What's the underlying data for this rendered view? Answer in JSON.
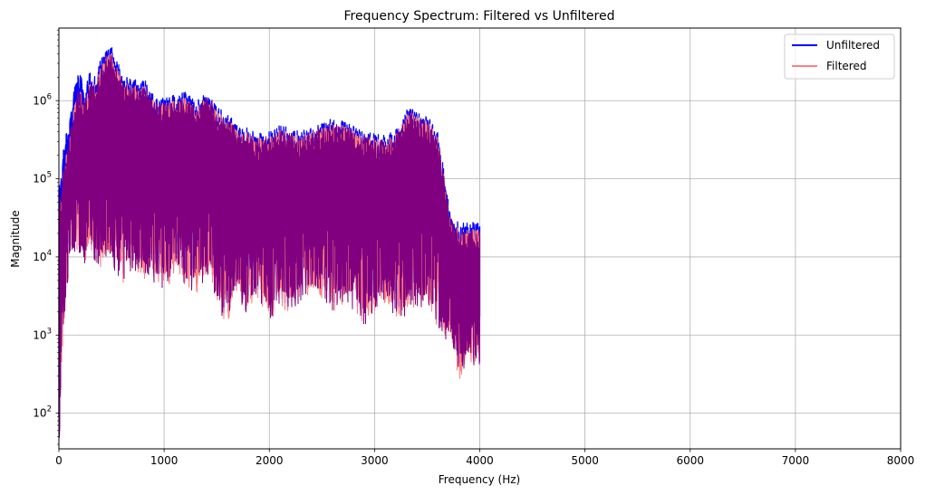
{
  "chart_data": {
    "type": "line",
    "title": "Frequency Spectrum: Filtered vs Unfiltered",
    "xlabel": "Frequency (Hz)",
    "ylabel": "Magnitude",
    "xlim": [
      0,
      8000
    ],
    "ylim": [
      35,
      8500000
    ],
    "yscale": "log",
    "x_ticks": [
      0,
      1000,
      2000,
      3000,
      4000,
      5000,
      6000,
      7000,
      8000
    ],
    "x_tick_labels": [
      "0",
      "1000",
      "2000",
      "3000",
      "4000",
      "5000",
      "6000",
      "7000",
      "8000"
    ],
    "y_ticks": [
      100,
      1000,
      10000,
      100000,
      1000000
    ],
    "y_tick_labels": [
      {
        "base": "10",
        "exp": "2"
      },
      {
        "base": "10",
        "exp": "3"
      },
      {
        "base": "10",
        "exp": "4"
      },
      {
        "base": "10",
        "exp": "5"
      },
      {
        "base": "10",
        "exp": "6"
      }
    ],
    "grid": true,
    "legend_position": "top-right",
    "series": [
      {
        "name": "Unfiltered",
        "color": "#0000ff",
        "x": [
          0,
          50,
          100,
          180,
          250,
          300,
          350,
          400,
          450,
          500,
          540,
          600,
          700,
          800,
          900,
          1000,
          1100,
          1200,
          1300,
          1400,
          1450,
          1500,
          1600,
          1700,
          1800,
          1900,
          2000,
          2100,
          2200,
          2300,
          2400,
          2500,
          2600,
          2700,
          2800,
          2900,
          3000,
          3100,
          3200,
          3300,
          3350,
          3400,
          3500,
          3600,
          3700,
          3750,
          3800,
          3900,
          4000
        ],
        "upper": [
          80000,
          300000,
          600000,
          2700000,
          1500000,
          2500000,
          2000000,
          3500000,
          4500000,
          5000000,
          3800000,
          2200000,
          1800000,
          2000000,
          1200000,
          1100000,
          1200000,
          1300000,
          1000000,
          1400000,
          1300000,
          900000,
          700000,
          500000,
          450000,
          380000,
          420000,
          480000,
          450000,
          400000,
          480000,
          520000,
          600000,
          560000,
          480000,
          420000,
          380000,
          360000,
          420000,
          750000,
          850000,
          700000,
          650000,
          400000,
          60000,
          30000,
          28000,
          27000,
          30000
        ],
        "lower": [
          50,
          3000,
          15000,
          20000,
          12000,
          20000,
          12000,
          10000,
          9000,
          11000,
          8000,
          5800,
          9000,
          7000,
          5000,
          4500,
          7000,
          5000,
          4000,
          7000,
          6000,
          2600,
          1600,
          4000,
          2000,
          3800,
          1700,
          3000,
          2200,
          3500,
          3500,
          3000,
          2500,
          3000,
          2600,
          1600,
          2500,
          3000,
          2000,
          2100,
          3000,
          2500,
          2500,
          1500,
          1000,
          800,
          400,
          700,
          500
        ]
      },
      {
        "name": "Filtered",
        "color": "#ff7f7f",
        "x": [
          0,
          50,
          100,
          180,
          250,
          300,
          350,
          400,
          450,
          500,
          540,
          600,
          700,
          800,
          900,
          1000,
          1100,
          1200,
          1300,
          1400,
          1450,
          1500,
          1600,
          1700,
          1800,
          1900,
          2000,
          2100,
          2200,
          2300,
          2400,
          2500,
          2600,
          2700,
          2800,
          2900,
          3000,
          3100,
          3200,
          3300,
          3350,
          3400,
          3500,
          3600,
          3700,
          3750,
          3800,
          3900,
          4000
        ],
        "upper": [
          40000,
          150000,
          350000,
          1600000,
          1000000,
          1800000,
          1600000,
          2800000,
          3800000,
          4200000,
          3200000,
          1800000,
          1500000,
          1700000,
          1000000,
          950000,
          1000000,
          1100000,
          850000,
          1200000,
          1100000,
          780000,
          600000,
          430000,
          390000,
          330000,
          360000,
          420000,
          390000,
          350000,
          420000,
          450000,
          520000,
          490000,
          420000,
          370000,
          330000,
          310000,
          370000,
          660000,
          750000,
          620000,
          570000,
          350000,
          50000,
          25000,
          23000,
          22000,
          25000
        ],
        "lower": [
          35,
          1500,
          8000,
          11000,
          7000,
          12000,
          8000,
          7000,
          7000,
          8000,
          6000,
          4500,
          7000,
          5500,
          4000,
          3500,
          5500,
          4000,
          3200,
          5500,
          4800,
          2000,
          1400,
          3200,
          1600,
          3000,
          1400,
          2400,
          1800,
          2800,
          2800,
          2400,
          2000,
          2400,
          2100,
          1300,
          2000,
          2400,
          1600,
          1700,
          2400,
          2000,
          2000,
          1200,
          800,
          600,
          250,
          500,
          300
        ]
      }
    ],
    "overlap_color": "#800080"
  }
}
